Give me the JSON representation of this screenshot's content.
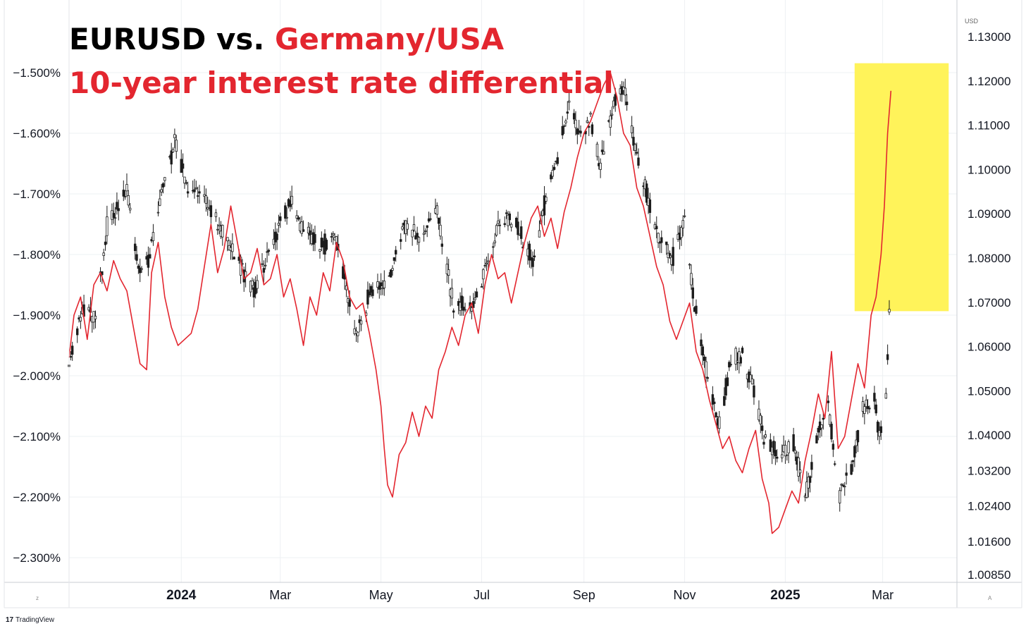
{
  "title": {
    "line1_part1": "EURUSD vs. ",
    "line1_part2": "Germany/USA",
    "line2": "10-year interest rate differential"
  },
  "colors": {
    "black_text": "#000000",
    "red_text": "#e3262f",
    "diff_line": "#e3262f",
    "candles": "#1c1c1c",
    "highlight": "#fff35a",
    "grid": "#eef0f3"
  },
  "currency_label": "USD",
  "footer_brand": "TradingView",
  "corner_left": "z",
  "corner_right": "A",
  "chart_data": {
    "type": "line",
    "x_tick_labels": [
      {
        "label": "2024",
        "date": "2024-01-01",
        "bold": true
      },
      {
        "label": "Mar",
        "date": "2024-03-01",
        "bold": false
      },
      {
        "label": "May",
        "date": "2024-05-01",
        "bold": false
      },
      {
        "label": "Jul",
        "date": "2024-07-01",
        "bold": false
      },
      {
        "label": "Sep",
        "date": "2024-09-01",
        "bold": false
      },
      {
        "label": "Nov",
        "date": "2024-11-01",
        "bold": false
      },
      {
        "label": "2025",
        "date": "2025-01-01",
        "bold": true
      },
      {
        "label": "Mar",
        "date": "2025-03-01",
        "bold": false
      }
    ],
    "x_range": [
      "2023-10-25",
      "2025-04-15"
    ],
    "left_axis": {
      "series": "Germany/USA 10-year interest rate differential",
      "range": [
        -2.375,
        -1.445
      ],
      "ticks": [
        -1.5,
        -1.6,
        -1.7,
        -1.8,
        -1.9,
        -2.0,
        -2.1,
        -2.2,
        -2.3
      ],
      "tick_labels": [
        "−1.500%",
        "−1.600%",
        "−1.700%",
        "−1.800%",
        "−1.900%",
        "−2.000%",
        "−2.100%",
        "−2.200%",
        "−2.300%"
      ]
    },
    "right_axis": {
      "series": "EURUSD",
      "unit": "USD",
      "range": [
        1.0085,
        1.131
      ],
      "ticks": [
        1.13,
        1.12,
        1.11,
        1.1,
        1.09,
        1.08,
        1.07,
        1.06,
        1.05,
        1.04,
        1.032,
        1.024,
        1.016,
        1.0085
      ],
      "tick_labels": [
        "1.13000",
        "1.12000",
        "1.11000",
        "1.10000",
        "1.09000",
        "1.08000",
        "1.07000",
        "1.06000",
        "1.05000",
        "1.04000",
        "1.03200",
        "1.02400",
        "1.01600",
        "1.00850"
      ]
    },
    "highlight_box": {
      "x": [
        "2025-02-12",
        "2025-04-10"
      ],
      "eurusd": [
        1.068,
        1.124
      ]
    },
    "series": [
      {
        "name": "Germany/USA",
        "axis": "left",
        "color": "#e3262f",
        "points": [
          [
            "2023-10-25",
            -1.97
          ],
          [
            "2023-10-28",
            -1.9
          ],
          [
            "2023-11-01",
            -1.87
          ],
          [
            "2023-11-05",
            -1.94
          ],
          [
            "2023-11-09",
            -1.85
          ],
          [
            "2023-11-13",
            -1.83
          ],
          [
            "2023-11-17",
            -1.86
          ],
          [
            "2023-11-21",
            -1.81
          ],
          [
            "2023-11-25",
            -1.84
          ],
          [
            "2023-11-29",
            -1.86
          ],
          [
            "2023-12-03",
            -1.92
          ],
          [
            "2023-12-07",
            -1.98
          ],
          [
            "2023-12-11",
            -1.99
          ],
          [
            "2023-12-14",
            -1.83
          ],
          [
            "2023-12-18",
            -1.78
          ],
          [
            "2023-12-22",
            -1.87
          ],
          [
            "2023-12-26",
            -1.92
          ],
          [
            "2023-12-30",
            -1.95
          ],
          [
            "2024-01-03",
            -1.94
          ],
          [
            "2024-01-07",
            -1.93
          ],
          [
            "2024-01-11",
            -1.89
          ],
          [
            "2024-01-15",
            -1.82
          ],
          [
            "2024-01-19",
            -1.75
          ],
          [
            "2024-01-23",
            -1.83
          ],
          [
            "2024-01-27",
            -1.79
          ],
          [
            "2024-01-31",
            -1.72
          ],
          [
            "2024-02-04",
            -1.78
          ],
          [
            "2024-02-08",
            -1.84
          ],
          [
            "2024-02-12",
            -1.83
          ],
          [
            "2024-02-16",
            -1.79
          ],
          [
            "2024-02-20",
            -1.85
          ],
          [
            "2024-02-24",
            -1.84
          ],
          [
            "2024-02-28",
            -1.8
          ],
          [
            "2024-03-03",
            -1.87
          ],
          [
            "2024-03-07",
            -1.84
          ],
          [
            "2024-03-11",
            -1.89
          ],
          [
            "2024-03-15",
            -1.95
          ],
          [
            "2024-03-19",
            -1.87
          ],
          [
            "2024-03-23",
            -1.9
          ],
          [
            "2024-03-27",
            -1.83
          ],
          [
            "2024-03-31",
            -1.86
          ],
          [
            "2024-04-04",
            -1.78
          ],
          [
            "2024-04-08",
            -1.81
          ],
          [
            "2024-04-12",
            -1.87
          ],
          [
            "2024-04-16",
            -1.89
          ],
          [
            "2024-04-20",
            -1.88
          ],
          [
            "2024-04-24",
            -1.93
          ],
          [
            "2024-04-28",
            -1.99
          ],
          [
            "2024-05-01",
            -2.05
          ],
          [
            "2024-05-03",
            -2.12
          ],
          [
            "2024-05-05",
            -2.18
          ],
          [
            "2024-05-08",
            -2.2
          ],
          [
            "2024-05-12",
            -2.13
          ],
          [
            "2024-05-16",
            -2.11
          ],
          [
            "2024-05-20",
            -2.06
          ],
          [
            "2024-05-24",
            -2.1
          ],
          [
            "2024-05-28",
            -2.05
          ],
          [
            "2024-06-01",
            -2.07
          ],
          [
            "2024-06-05",
            -1.99
          ],
          [
            "2024-06-09",
            -1.96
          ],
          [
            "2024-06-13",
            -1.92
          ],
          [
            "2024-06-17",
            -1.95
          ],
          [
            "2024-06-21",
            -1.9
          ],
          [
            "2024-06-25",
            -1.88
          ],
          [
            "2024-06-29",
            -1.93
          ],
          [
            "2024-07-03",
            -1.85
          ],
          [
            "2024-07-07",
            -1.8
          ],
          [
            "2024-07-11",
            -1.84
          ],
          [
            "2024-07-15",
            -1.83
          ],
          [
            "2024-07-19",
            -1.88
          ],
          [
            "2024-07-23",
            -1.83
          ],
          [
            "2024-07-27",
            -1.78
          ],
          [
            "2024-07-31",
            -1.74
          ],
          [
            "2024-08-04",
            -1.72
          ],
          [
            "2024-08-08",
            -1.77
          ],
          [
            "2024-08-12",
            -1.74
          ],
          [
            "2024-08-16",
            -1.79
          ],
          [
            "2024-08-20",
            -1.73
          ],
          [
            "2024-08-24",
            -1.69
          ],
          [
            "2024-08-28",
            -1.64
          ],
          [
            "2024-09-01",
            -1.6
          ],
          [
            "2024-09-05",
            -1.58
          ],
          [
            "2024-09-09",
            -1.55
          ],
          [
            "2024-09-13",
            -1.52
          ],
          [
            "2024-09-17",
            -1.5
          ],
          [
            "2024-09-21",
            -1.54
          ],
          [
            "2024-09-25",
            -1.6
          ],
          [
            "2024-09-29",
            -1.62
          ],
          [
            "2024-10-03",
            -1.69
          ],
          [
            "2024-10-07",
            -1.72
          ],
          [
            "2024-10-11",
            -1.77
          ],
          [
            "2024-10-15",
            -1.82
          ],
          [
            "2024-10-19",
            -1.85
          ],
          [
            "2024-10-23",
            -1.91
          ],
          [
            "2024-10-27",
            -1.94
          ],
          [
            "2024-10-31",
            -1.91
          ],
          [
            "2024-11-04",
            -1.88
          ],
          [
            "2024-11-08",
            -1.96
          ],
          [
            "2024-11-12",
            -1.99
          ],
          [
            "2024-11-16",
            -2.04
          ],
          [
            "2024-11-20",
            -2.08
          ],
          [
            "2024-11-24",
            -2.12
          ],
          [
            "2024-11-28",
            -2.1
          ],
          [
            "2024-12-02",
            -2.14
          ],
          [
            "2024-12-06",
            -2.16
          ],
          [
            "2024-12-10",
            -2.12
          ],
          [
            "2024-12-14",
            -2.09
          ],
          [
            "2024-12-18",
            -2.17
          ],
          [
            "2024-12-22",
            -2.21
          ],
          [
            "2024-12-24",
            -2.26
          ],
          [
            "2024-12-28",
            -2.25
          ],
          [
            "2025-01-01",
            -2.22
          ],
          [
            "2025-01-05",
            -2.19
          ],
          [
            "2025-01-09",
            -2.21
          ],
          [
            "2025-01-13",
            -2.14
          ],
          [
            "2025-01-17",
            -2.09
          ],
          [
            "2025-01-21",
            -2.03
          ],
          [
            "2025-01-25",
            -2.07
          ],
          [
            "2025-01-29",
            -1.96
          ],
          [
            "2025-02-02",
            -2.12
          ],
          [
            "2025-02-06",
            -2.1
          ],
          [
            "2025-02-10",
            -2.04
          ],
          [
            "2025-02-14",
            -1.98
          ],
          [
            "2025-02-18",
            -2.02
          ],
          [
            "2025-02-22",
            -1.9
          ],
          [
            "2025-02-25",
            -1.87
          ],
          [
            "2025-02-28",
            -1.8
          ],
          [
            "2025-03-02",
            -1.72
          ],
          [
            "2025-03-04",
            -1.6
          ],
          [
            "2025-03-06",
            -1.53
          ]
        ]
      },
      {
        "name": "EURUSD",
        "axis": "right",
        "type": "candlestick",
        "color": "#1c1c1c",
        "path": [
          [
            "2023-10-25",
            1.056
          ],
          [
            "2023-11-01",
            1.068
          ],
          [
            "2023-11-10",
            1.066
          ],
          [
            "2023-11-17",
            1.087
          ],
          [
            "2023-11-29",
            1.096
          ],
          [
            "2023-12-06",
            1.078
          ],
          [
            "2023-12-13",
            1.08
          ],
          [
            "2023-12-20",
            1.094
          ],
          [
            "2023-12-28",
            1.106
          ],
          [
            "2024-01-04",
            1.097
          ],
          [
            "2024-01-12",
            1.095
          ],
          [
            "2024-01-22",
            1.089
          ],
          [
            "2024-02-01",
            1.082
          ],
          [
            "2024-02-14",
            1.072
          ],
          [
            "2024-02-23",
            1.082
          ],
          [
            "2024-03-08",
            1.093
          ],
          [
            "2024-03-14",
            1.087
          ],
          [
            "2024-03-25",
            1.083
          ],
          [
            "2024-04-04",
            1.084
          ],
          [
            "2024-04-16",
            1.062
          ],
          [
            "2024-04-25",
            1.073
          ],
          [
            "2024-05-06",
            1.075
          ],
          [
            "2024-05-15",
            1.088
          ],
          [
            "2024-05-24",
            1.085
          ],
          [
            "2024-06-04",
            1.09
          ],
          [
            "2024-06-14",
            1.069
          ],
          [
            "2024-06-26",
            1.069
          ],
          [
            "2024-07-12",
            1.089
          ],
          [
            "2024-07-22",
            1.088
          ],
          [
            "2024-08-01",
            1.079
          ],
          [
            "2024-08-08",
            1.092
          ],
          [
            "2024-08-16",
            1.103
          ],
          [
            "2024-08-23",
            1.116
          ],
          [
            "2024-08-29",
            1.107
          ],
          [
            "2024-09-05",
            1.111
          ],
          [
            "2024-09-11",
            1.101
          ],
          [
            "2024-09-20",
            1.116
          ],
          [
            "2024-09-26",
            1.118
          ],
          [
            "2024-10-03",
            1.103
          ],
          [
            "2024-10-10",
            1.093
          ],
          [
            "2024-10-17",
            1.084
          ],
          [
            "2024-10-25",
            1.08
          ],
          [
            "2024-11-01",
            1.089
          ],
          [
            "2024-11-06",
            1.072
          ],
          [
            "2024-11-14",
            1.055
          ],
          [
            "2024-11-22",
            1.042
          ],
          [
            "2024-11-29",
            1.057
          ],
          [
            "2024-12-06",
            1.058
          ],
          [
            "2024-12-13",
            1.05
          ],
          [
            "2024-12-20",
            1.038
          ],
          [
            "2024-12-31",
            1.036
          ],
          [
            "2025-01-06",
            1.038
          ],
          [
            "2025-01-13",
            1.026
          ],
          [
            "2025-01-20",
            1.039
          ],
          [
            "2025-01-27",
            1.047
          ],
          [
            "2025-02-03",
            1.026
          ],
          [
            "2025-02-10",
            1.032
          ],
          [
            "2025-02-17",
            1.046
          ],
          [
            "2025-02-24",
            1.048
          ],
          [
            "2025-02-27",
            1.039
          ],
          [
            "2025-03-03",
            1.048
          ],
          [
            "2025-03-05",
            1.068
          ]
        ]
      }
    ]
  }
}
